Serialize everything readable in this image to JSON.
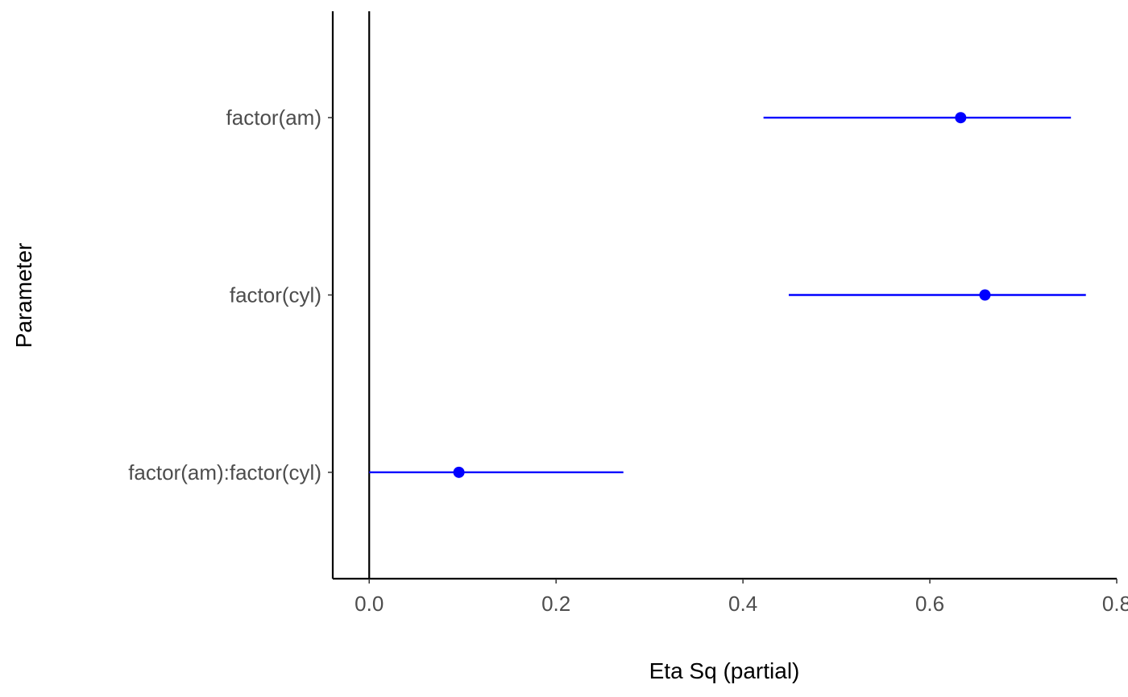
{
  "chart_data": {
    "type": "forest",
    "xlabel": "Eta Sq (partial)",
    "ylabel": "Parameter",
    "xlim": [
      -0.039,
      0.8
    ],
    "x_ticks": [
      0.0,
      0.2,
      0.4,
      0.6,
      0.8
    ],
    "x_tick_labels": [
      "0.0",
      "0.2",
      "0.4",
      "0.6",
      "0.8"
    ],
    "reference_line": 0,
    "grid": false,
    "colors": {
      "estimate": "#0000ff",
      "axis": "#000000",
      "tick_text": "#4d4d4d"
    },
    "parameters": [
      {
        "name": "factor(am)",
        "estimate": 0.633,
        "ci_low": 0.422,
        "ci_high": 0.751
      },
      {
        "name": "factor(cyl)",
        "estimate": 0.659,
        "ci_low": 0.449,
        "ci_high": 0.767
      },
      {
        "name": "factor(am):factor(cyl)",
        "estimate": 0.096,
        "ci_low": 0.0,
        "ci_high": 0.272
      }
    ]
  }
}
